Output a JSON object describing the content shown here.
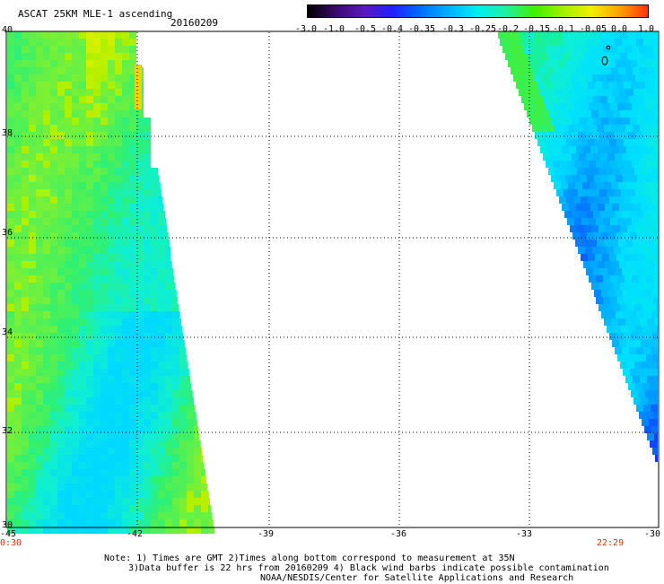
{
  "header": {
    "title": "ASCAT 25KM MLE-1 ascending",
    "date": "20160209"
  },
  "colorbar": {
    "labels": [
      "-3.0",
      "-1.0",
      "-0.5",
      "-0.4",
      "-0.35",
      "-0.3",
      "-0.25",
      "-0.2",
      "-0.15",
      "-0.1",
      "-0.05",
      "0.0",
      "1.0"
    ],
    "colors": [
      "#000000",
      "#3c0a6e",
      "#5a1abf",
      "#2020ff",
      "#0070ff",
      "#00b4ff",
      "#00f0f0",
      "#20f0a0",
      "#40f000",
      "#a0f000",
      "#f0f000",
      "#ffa000",
      "#ff3010"
    ]
  },
  "map": {
    "lat_labels": [
      "40",
      "38",
      "36",
      "34",
      "32",
      "30"
    ],
    "lon_labels": [
      "-45",
      "-42",
      "-39",
      "-36",
      "-33",
      "-30"
    ],
    "time_left": "0:30",
    "time_right": "22:29",
    "lat_range": [
      30,
      40
    ],
    "lon_range": [
      -45,
      -30
    ]
  },
  "notes": {
    "line1": "Note: 1) Times are GMT 2)Times along bottom correspond to measurement at 35N",
    "line2": "3)Data buffer is 22 hrs from 20160209 4) Black wind barbs indicate possible contamination",
    "line3": "NOAA/NESDIS/Center for Satellite Applications and Research"
  }
}
